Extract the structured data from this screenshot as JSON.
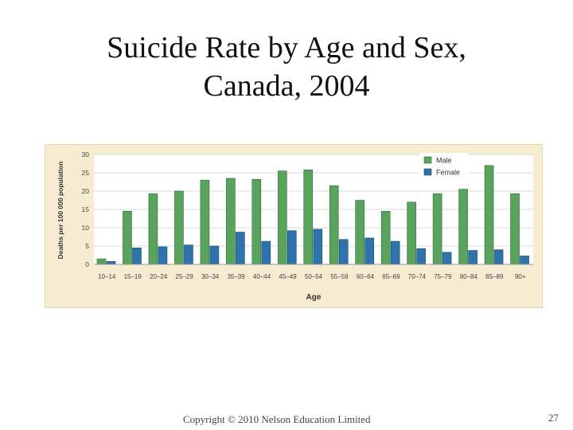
{
  "title_lines": [
    "Suicide Rate by Age and Sex,",
    "Canada, 2004"
  ],
  "footer": {
    "copyright": "Copyright © 2010 Nelson Education Limited",
    "slide_number": "27"
  },
  "colors": {
    "male": "#5aa35f",
    "female": "#2f73ad",
    "panel": "#f6ecd2",
    "plot_bg": "#ffffff",
    "grid": "#cfcfcf"
  },
  "chart_data": {
    "type": "bar",
    "xlabel": "Age",
    "ylabel": "Deaths per 100 000 population",
    "ylim": [
      0,
      30
    ],
    "yticks": [
      0,
      5,
      10,
      15,
      20,
      25,
      30
    ],
    "grid": true,
    "legend_position": "top-right",
    "categories": [
      "10–14",
      "15–19",
      "20–24",
      "25–29",
      "30–34",
      "35–39",
      "40–44",
      "45–49",
      "50–54",
      "55–59",
      "60–64",
      "65–69",
      "70–74",
      "75–79",
      "80–84",
      "85–89",
      "90+"
    ],
    "series": [
      {
        "name": "Male",
        "values": [
          1.5,
          14.5,
          19.3,
          20.0,
          23.0,
          23.5,
          23.2,
          25.5,
          25.8,
          21.5,
          17.5,
          14.5,
          17.0,
          19.3,
          20.5,
          27.0,
          19.3
        ]
      },
      {
        "name": "Female",
        "values": [
          0.8,
          4.5,
          4.8,
          5.3,
          5.0,
          8.8,
          6.3,
          9.2,
          9.6,
          6.8,
          7.2,
          6.3,
          4.3,
          3.3,
          3.8,
          4.0,
          2.3
        ]
      }
    ]
  }
}
